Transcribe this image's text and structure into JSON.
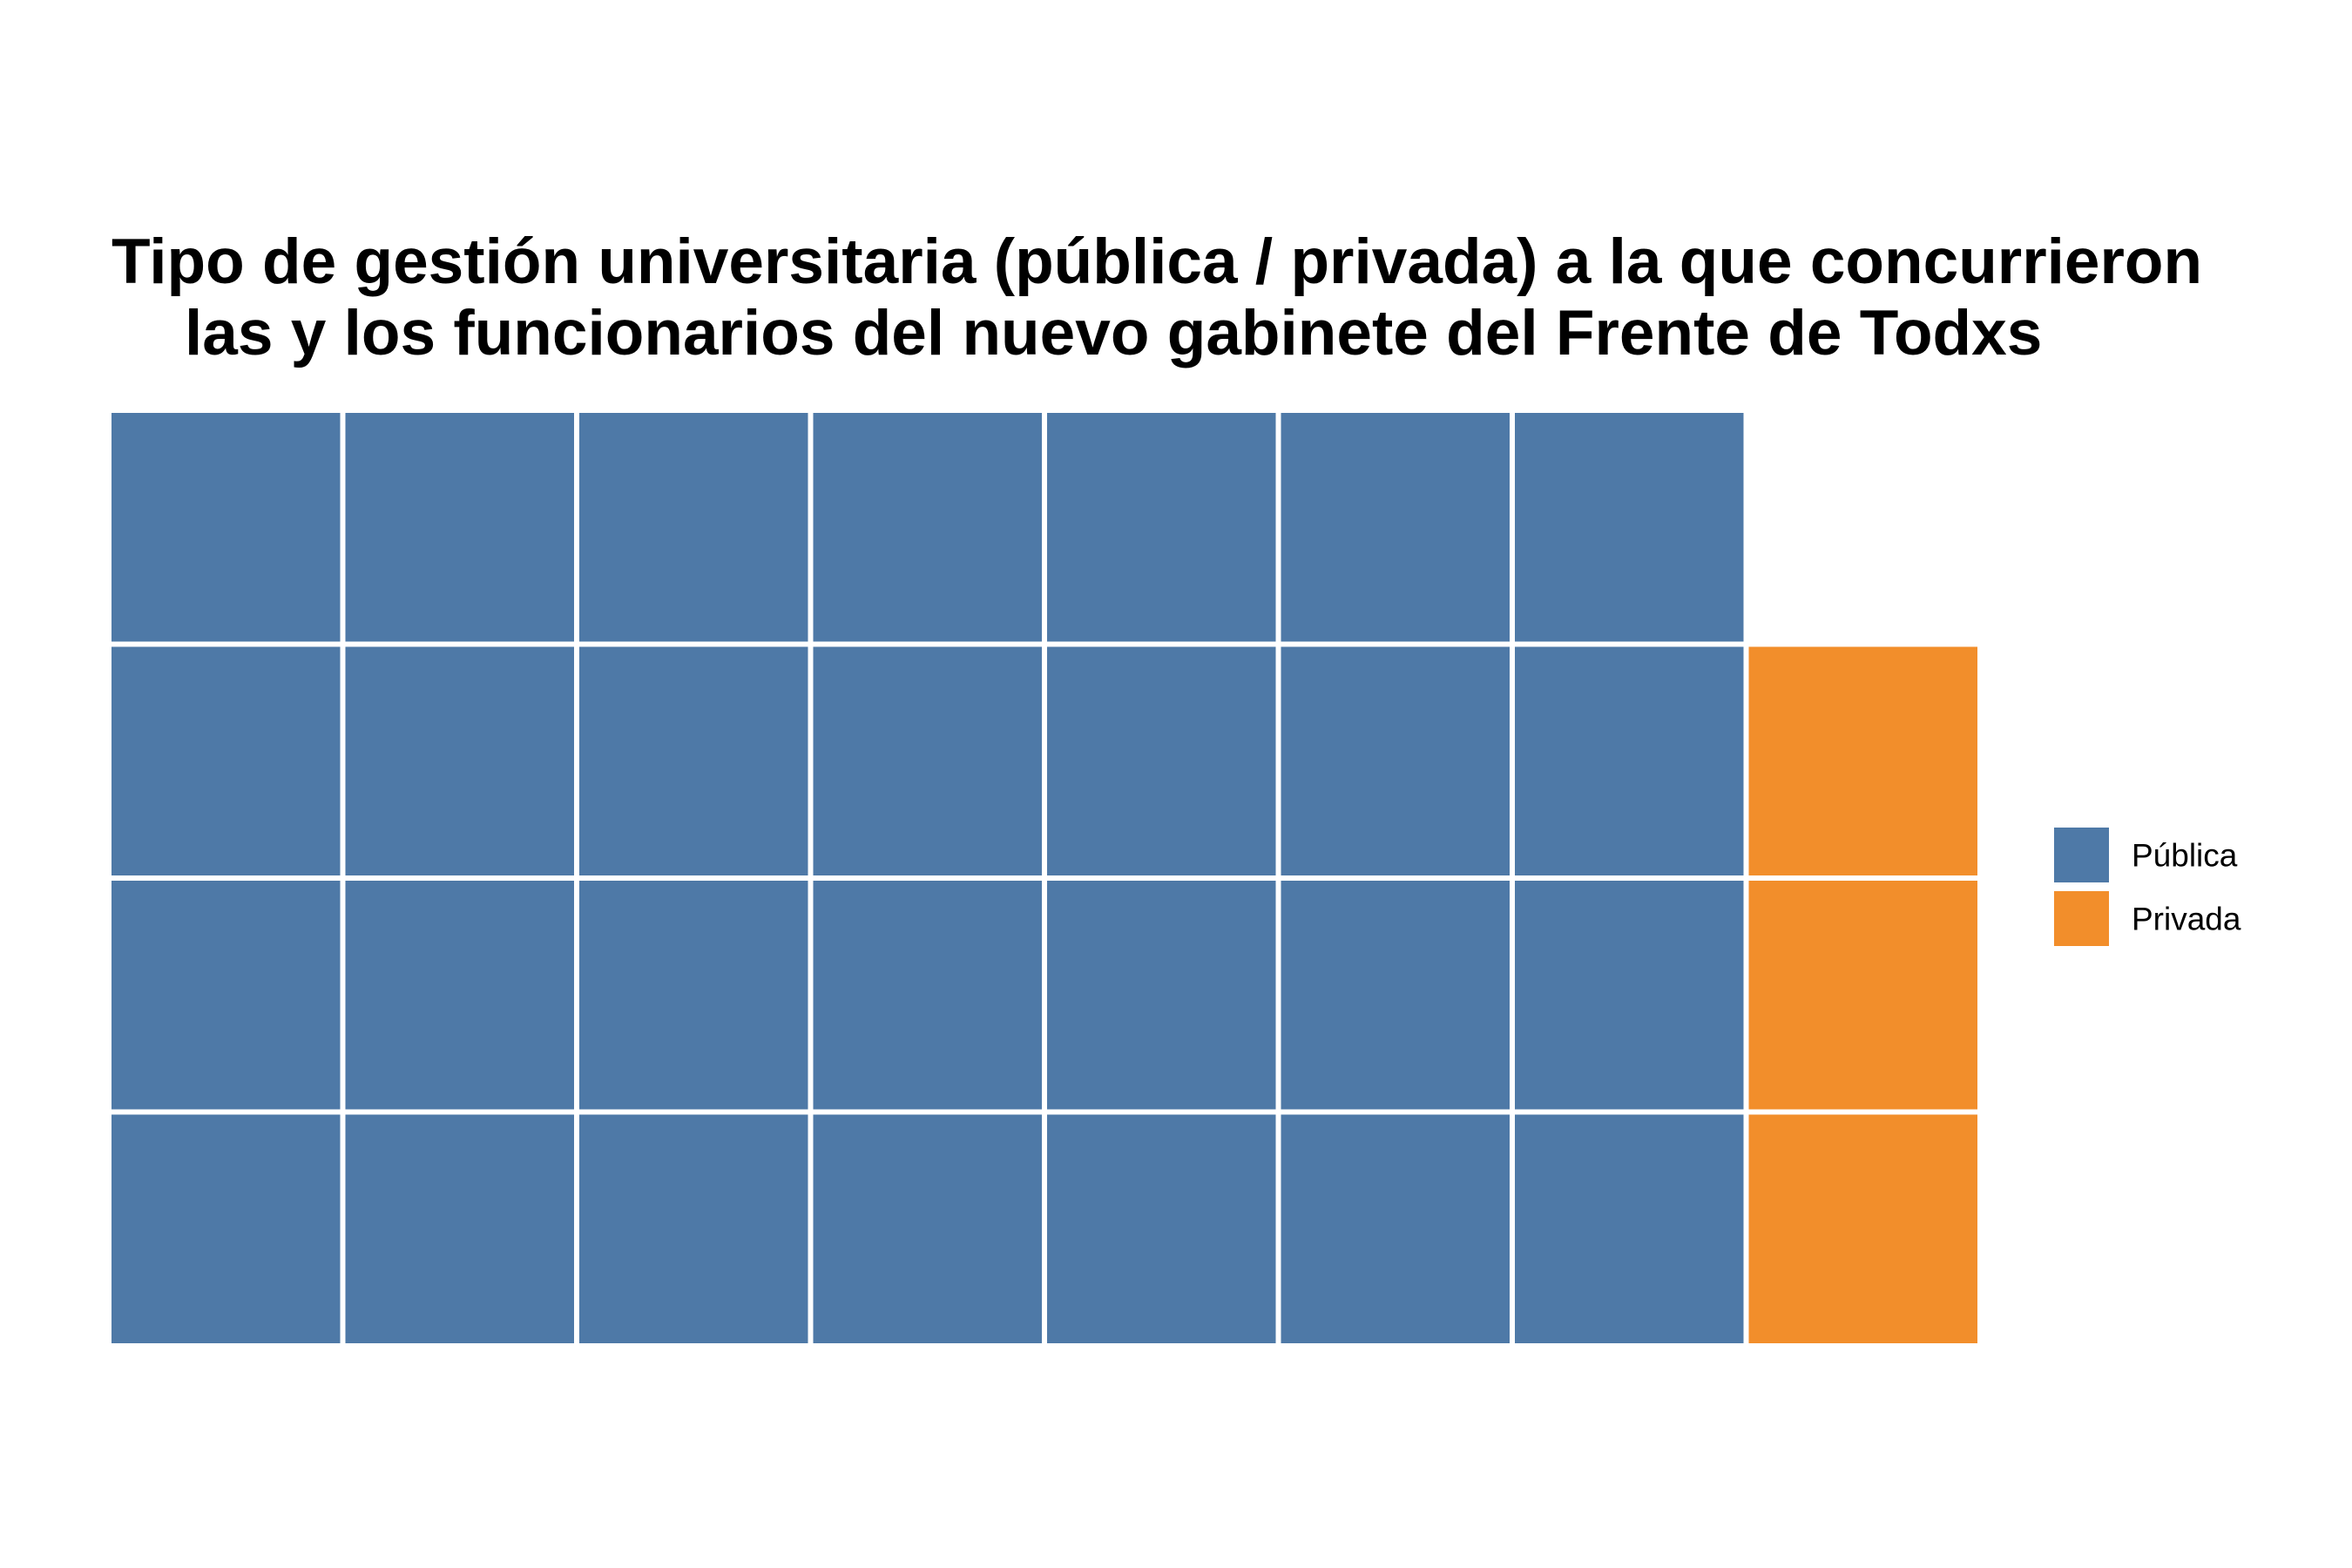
{
  "chart_data": {
    "type": "waffle",
    "title_lines": [
      "Tipo de gestión universitaria (pública / privada) a la que concurrieron",
      "las y los funcionarios del nuevo gabinete del Frente de Todxs"
    ],
    "rows": 4,
    "series": [
      {
        "name": "Pública",
        "value": 28,
        "color": "#4e79a7"
      },
      {
        "name": "Privada",
        "value": 3,
        "color": "#f28e2b"
      }
    ],
    "legend_position": "right",
    "grid": false
  }
}
